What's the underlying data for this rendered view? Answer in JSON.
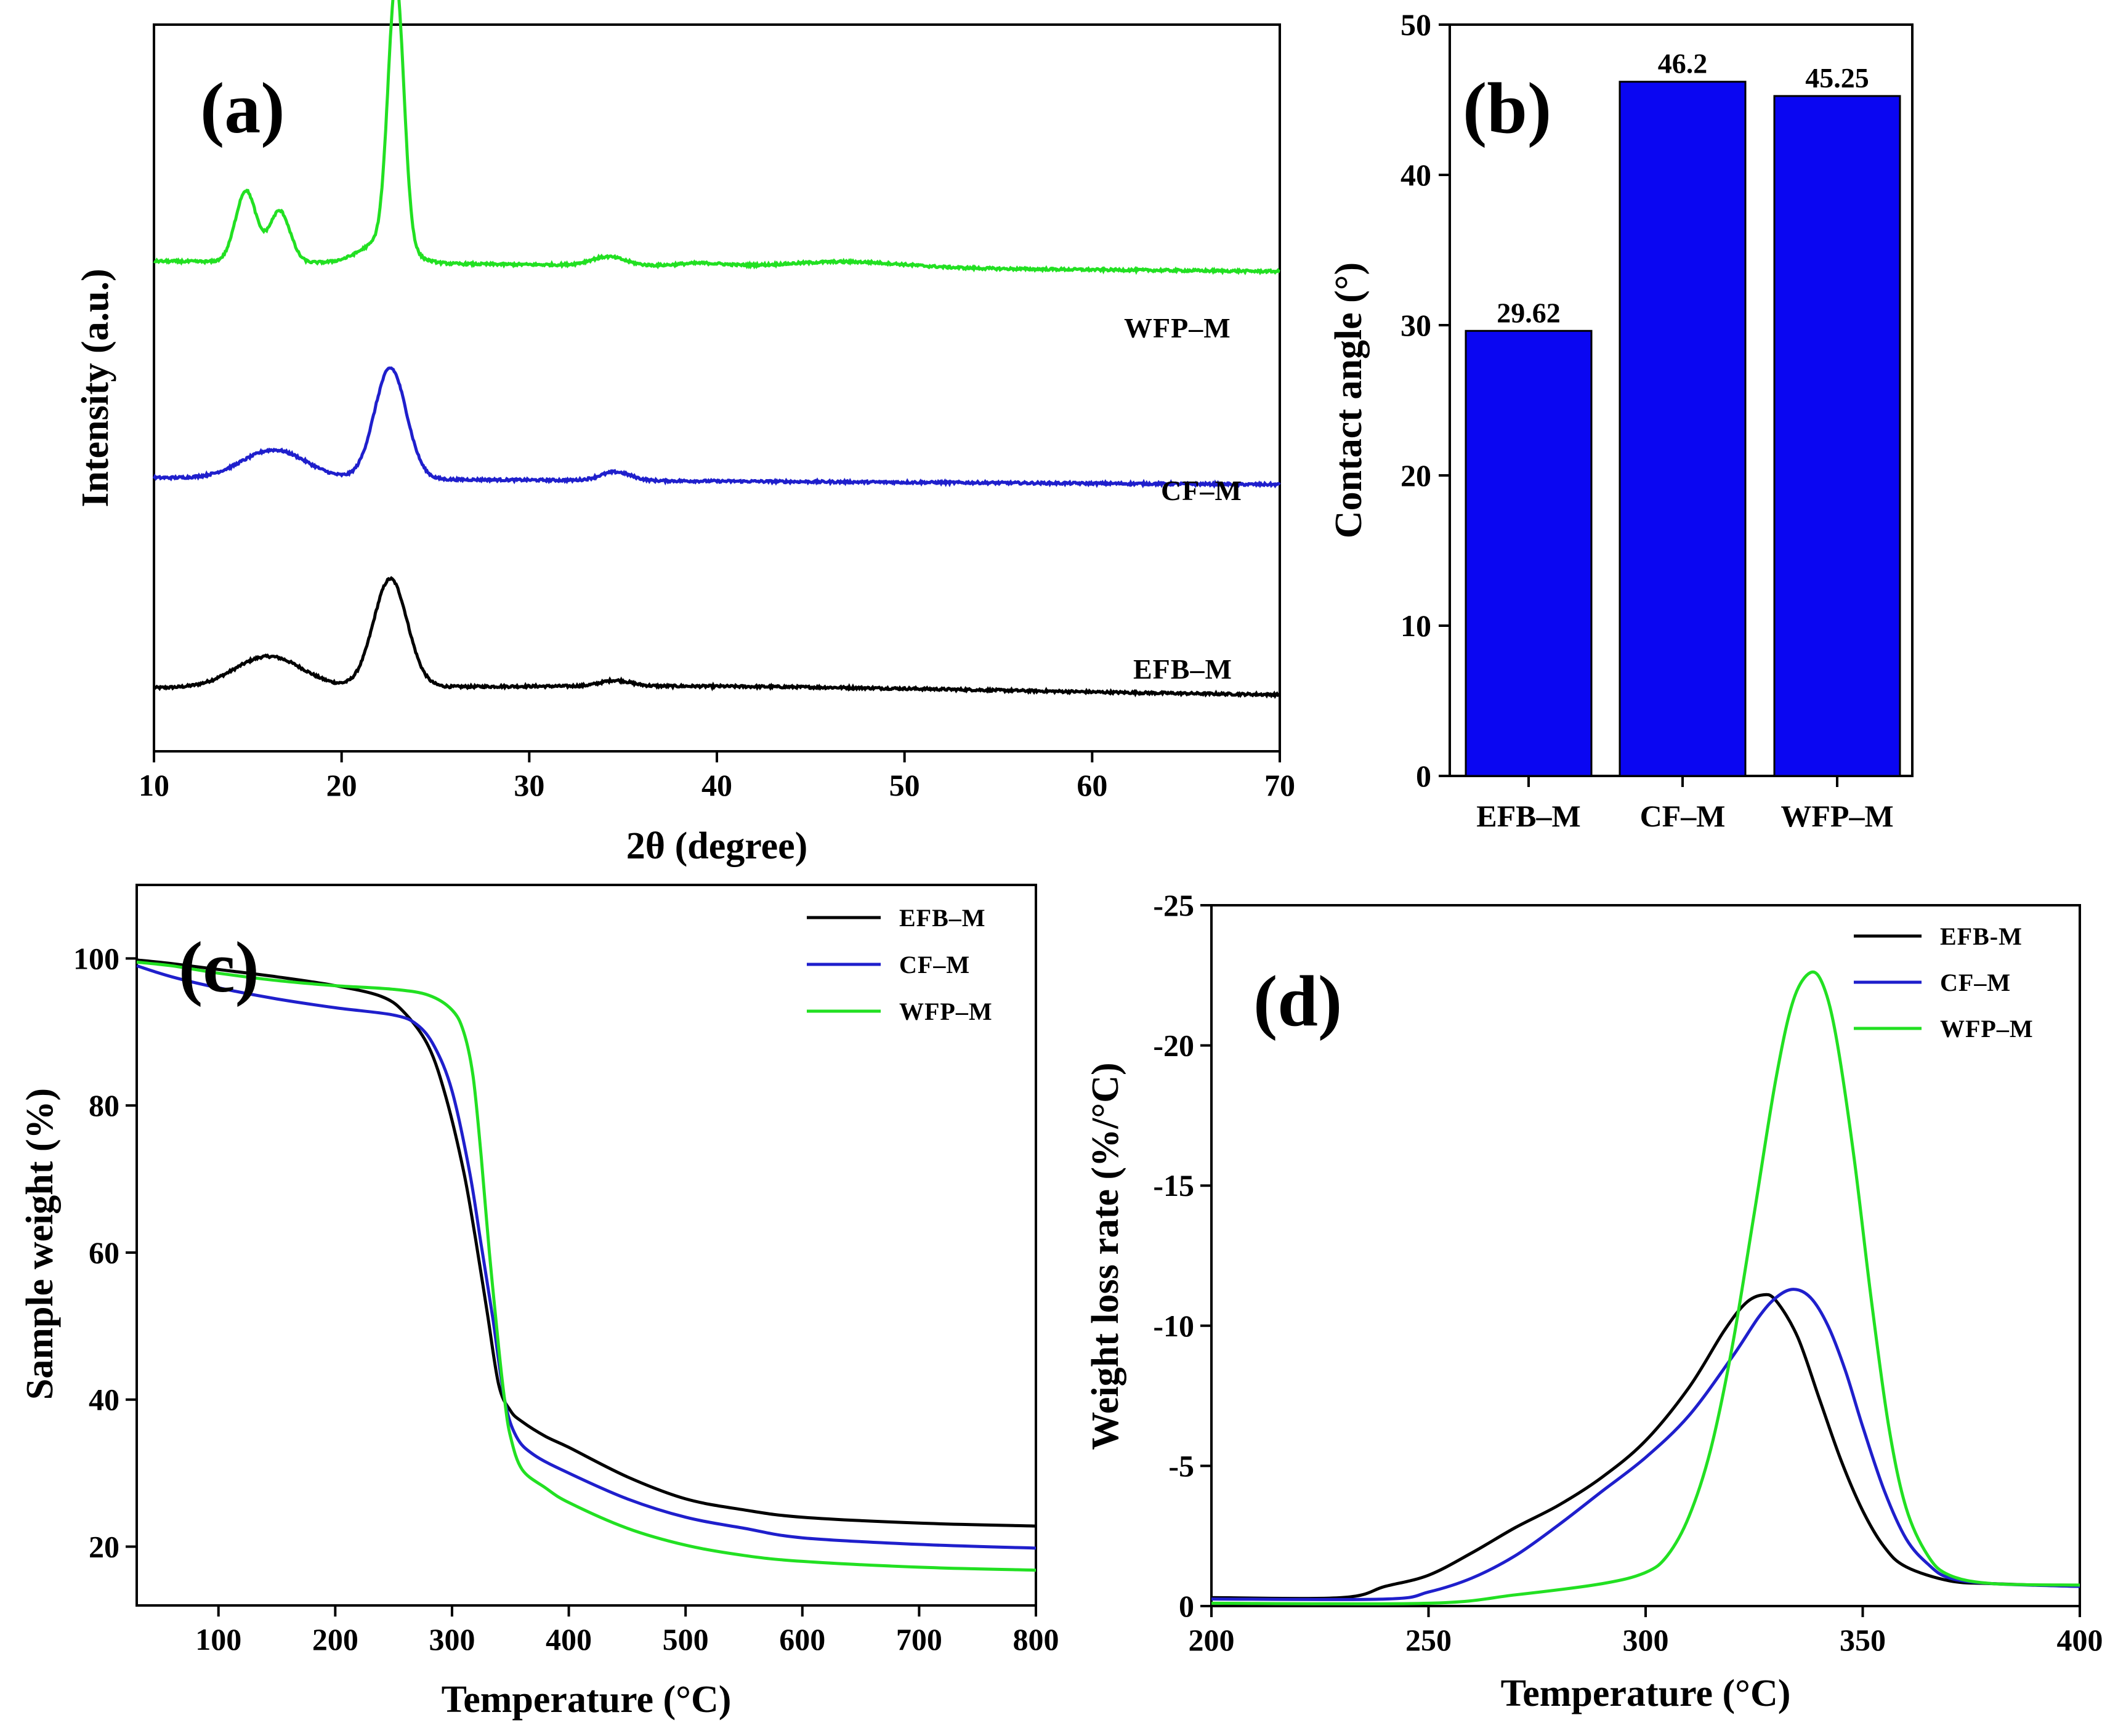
{
  "colors": {
    "EFB": "#000000",
    "CF": "#1f1fcc",
    "WFP": "#22e022",
    "bar": "#0a06f2"
  },
  "chart_data": [
    {
      "id": "a",
      "type": "line",
      "panel_label": "(a)",
      "title": "",
      "xlabel": "2θ (degree)",
      "ylabel": "Intensity (a.u.)",
      "xlim": [
        10,
        70
      ],
      "xticks": [
        10,
        20,
        30,
        40,
        50,
        60,
        70
      ],
      "yticks_visible": false,
      "grid": false,
      "series": [
        {
          "name": "EFB–M",
          "color_key": "EFB",
          "baseline": 0.22,
          "noise": 0.004,
          "peaks": [
            [
              16.1,
              0.11,
              1.8
            ],
            [
              22.6,
              0.38,
              0.9
            ],
            [
              34.6,
              0.02,
              0.8
            ]
          ],
          "broad": [
            [
              40,
              0.02,
              15
            ]
          ],
          "slope": -0.0004
        },
        {
          "name": "CF–M",
          "color_key": "CF",
          "baseline": 0.96,
          "noise": 0.004,
          "peaks": [
            [
              16.4,
              0.1,
              1.7
            ],
            [
              22.6,
              0.39,
              0.85
            ],
            [
              34.6,
              0.03,
              0.8
            ]
          ],
          "broad": [],
          "slope": -0.0004
        },
        {
          "name": "WFP–M",
          "color_key": "WFP",
          "baseline": 1.72,
          "noise": 0.004,
          "peaks": [
            [
              14.9,
              0.25,
              0.55
            ],
            [
              16.7,
              0.18,
              0.55
            ],
            [
              22.9,
              0.92,
              0.42
            ],
            [
              22.3,
              0.08,
              1.2
            ],
            [
              34.2,
              0.03,
              0.9
            ],
            [
              39.2,
              0.01,
              1.2
            ],
            [
              47,
              0.02,
              3
            ]
          ],
          "broad": [],
          "slope": -0.0006
        }
      ]
    },
    {
      "id": "b",
      "type": "bar",
      "panel_label": "(b)",
      "title": "",
      "xlabel": "",
      "ylabel": "Contact angle (°)",
      "categories": [
        "EFB–M",
        "CF–M",
        "WFP–M"
      ],
      "values": [
        29.62,
        46.2,
        45.25
      ],
      "value_labels": [
        "29.62",
        "46.2",
        "45.25"
      ],
      "ylim": [
        0,
        50
      ],
      "yticks": [
        0,
        10,
        20,
        30,
        40,
        50
      ],
      "grid": false
    },
    {
      "id": "c",
      "type": "line",
      "panel_label": "(c)",
      "title": "",
      "xlabel": "Temperature (°C)",
      "ylabel": "Sample weight (%)",
      "xlim": [
        30,
        800
      ],
      "ylim": [
        12,
        110
      ],
      "xticks": [
        100,
        200,
        300,
        400,
        500,
        600,
        700,
        800
      ],
      "yticks": [
        20,
        40,
        60,
        80,
        100
      ],
      "legend": "top-right",
      "grid": false,
      "series": [
        {
          "name": "EFB–M",
          "color_key": "EFB",
          "x": [
            30,
            60,
            100,
            150,
            200,
            240,
            260,
            280,
            295,
            310,
            320,
            330,
            340,
            350,
            360,
            380,
            400,
            450,
            500,
            550,
            600,
            700,
            800
          ],
          "y": [
            99.8,
            99.3,
            98.5,
            97.5,
            96.3,
            94.8,
            92.5,
            88,
            81,
            71,
            62,
            52,
            42,
            38.5,
            37,
            35,
            33.5,
            29.5,
            26.5,
            25,
            24,
            23.2,
            22.8
          ]
        },
        {
          "name": "CF–M",
          "color_key": "CF",
          "x": [
            30,
            60,
            100,
            150,
            200,
            250,
            270,
            285,
            300,
            315,
            325,
            335,
            345,
            355,
            370,
            400,
            450,
            500,
            550,
            600,
            700,
            800
          ],
          "y": [
            99,
            97.5,
            96,
            94.5,
            93.3,
            92.3,
            91,
            88,
            82,
            71,
            61,
            51,
            40,
            35,
            32.5,
            30,
            26.5,
            24,
            22.5,
            21.2,
            20.3,
            19.8
          ]
        },
        {
          "name": "WFP–M",
          "color_key": "WFP",
          "x": [
            30,
            60,
            100,
            150,
            200,
            250,
            280,
            300,
            310,
            318,
            325,
            332,
            340,
            345,
            350,
            360,
            380,
            400,
            450,
            500,
            550,
            600,
            700,
            800
          ],
          "y": [
            99.5,
            99,
            98,
            97,
            96.3,
            95.8,
            95,
            93,
            90,
            84,
            73,
            60,
            47,
            40,
            35,
            30.5,
            28,
            26,
            22.5,
            20.2,
            18.8,
            18,
            17.2,
            16.8
          ]
        }
      ]
    },
    {
      "id": "d",
      "type": "line",
      "panel_label": "(d)",
      "title": "",
      "xlabel": "Temperature (°C)",
      "ylabel": "Weight loss rate (%/°C)",
      "xlim": [
        200,
        400
      ],
      "ylim": [
        0,
        -25
      ],
      "xticks": [
        200,
        250,
        300,
        350,
        400
      ],
      "yticks": [
        0,
        -5,
        -10,
        -15,
        -20,
        -25
      ],
      "legend": "top-right",
      "grid": false,
      "series": [
        {
          "name": "EFB-M",
          "color_key": "EFB",
          "x": [
            200,
            230,
            240,
            250,
            260,
            270,
            280,
            290,
            300,
            310,
            318,
            323,
            327,
            330,
            335,
            340,
            345,
            350,
            355,
            360,
            370,
            380,
            400
          ],
          "y": [
            -0.3,
            -0.3,
            -0.7,
            -1.1,
            -1.9,
            -2.8,
            -3.6,
            -4.6,
            -5.9,
            -7.8,
            -9.8,
            -10.8,
            -11.1,
            -10.9,
            -9.6,
            -7.4,
            -5.2,
            -3.4,
            -2.1,
            -1.4,
            -0.9,
            -0.8,
            -0.7
          ]
        },
        {
          "name": "CF–M",
          "color_key": "CF",
          "x": [
            200,
            240,
            250,
            260,
            270,
            280,
            290,
            300,
            310,
            320,
            326,
            330,
            334,
            338,
            342,
            346,
            350,
            355,
            360,
            365,
            370,
            380,
            400
          ],
          "y": [
            -0.25,
            -0.25,
            -0.5,
            -1.0,
            -1.8,
            -2.9,
            -4.1,
            -5.3,
            -6.8,
            -8.9,
            -10.3,
            -11.0,
            -11.3,
            -11.0,
            -10.0,
            -8.4,
            -6.4,
            -4.1,
            -2.4,
            -1.5,
            -1.0,
            -0.8,
            -0.7
          ]
        },
        {
          "name": "WFP–M",
          "color_key": "WFP",
          "x": [
            200,
            250,
            270,
            290,
            300,
            305,
            310,
            315,
            320,
            325,
            330,
            334,
            338,
            341,
            344,
            348,
            352,
            356,
            360,
            365,
            370,
            380,
            400
          ],
          "y": [
            -0.1,
            -0.1,
            -0.4,
            -0.8,
            -1.2,
            -1.8,
            -3.2,
            -5.6,
            -9.3,
            -14.0,
            -18.8,
            -21.6,
            -22.6,
            -22.1,
            -20.2,
            -16.0,
            -10.9,
            -6.4,
            -3.5,
            -1.8,
            -1.1,
            -0.8,
            -0.75
          ]
        }
      ]
    }
  ]
}
